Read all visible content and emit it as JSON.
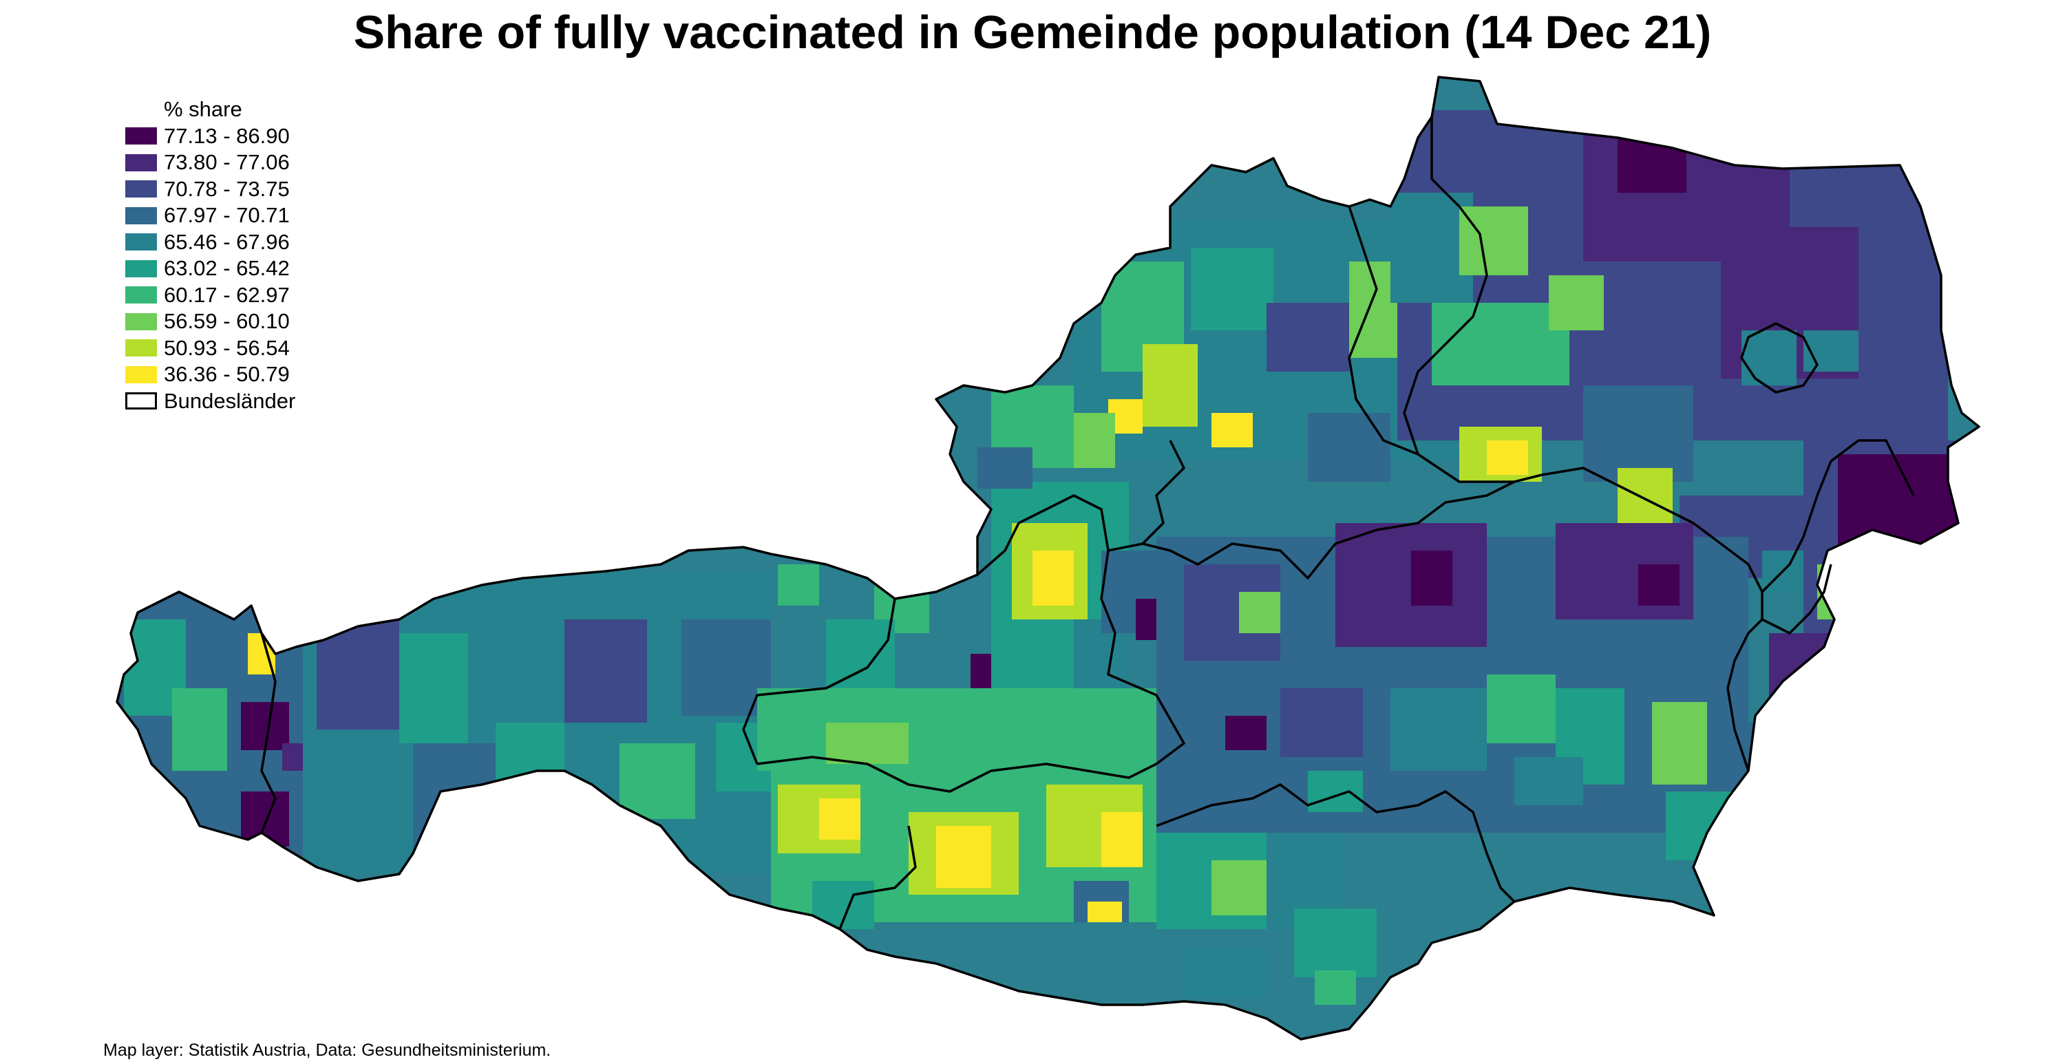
{
  "title": "Share of fully vaccinated in Gemeinde population (14 Dec 21)",
  "legend": {
    "title": "% share",
    "classes": [
      {
        "label": "77.13 - 86.90",
        "color": "#440154"
      },
      {
        "label": "73.80 - 77.06",
        "color": "#482878"
      },
      {
        "label": "70.78 - 73.75",
        "color": "#3e4989"
      },
      {
        "label": "67.97 - 70.71",
        "color": "#31688e"
      },
      {
        "label": "65.46 - 67.96",
        "color": "#26828e"
      },
      {
        "label": "63.02 - 65.42",
        "color": "#1f9e89"
      },
      {
        "label": "60.17 - 62.97",
        "color": "#35b779"
      },
      {
        "label": "56.59 - 60.10",
        "color": "#6ece58"
      },
      {
        "label": "50.93 - 56.54",
        "color": "#b5de2b"
      },
      {
        "label": "36.36 - 50.79",
        "color": "#fde725"
      }
    ],
    "border_label": "Bundesländer"
  },
  "caption": "Map layer: Statistik Austria, Data: Gesundheitsministerium."
}
